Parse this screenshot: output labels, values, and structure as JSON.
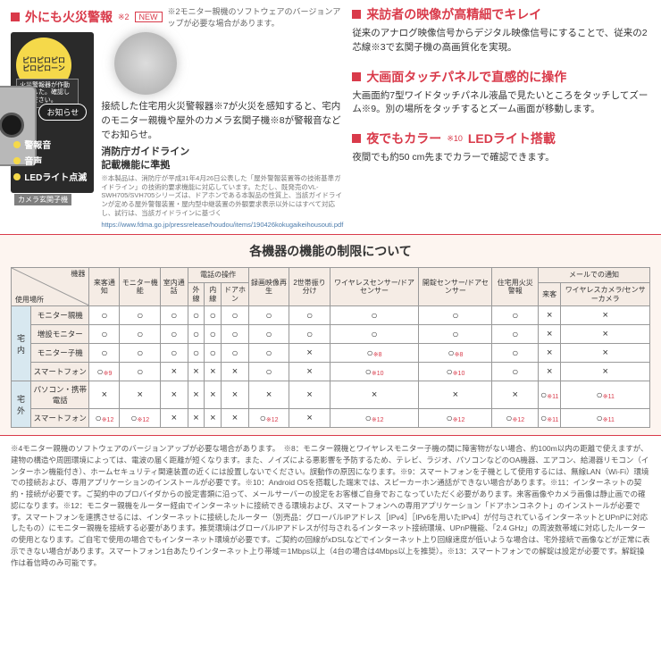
{
  "top_left": {
    "title": "外にも火災警報",
    "sup": "※2",
    "new": "NEW",
    "note": "※2モニター親機のソフトウェアのバージョンアップが必要な場合があります。",
    "balloon": "ピロピロピロ\nピロピローン",
    "alert_box": "火災警報器が作動しました。確認してください。",
    "notice": "お知らせ",
    "bullets": [
      "警報音",
      "音声",
      "LEDライト点滅"
    ],
    "caption": "カメラ玄関子機",
    "desc": "接続した住宅用火災警報器※7が火災を感知すると、宅内のモニター親機や屋外のカメラ玄関子機※8が警報音などでお知らせ。",
    "guideline_title": "消防庁ガイドライン\n記載機能に準拠",
    "fine": "※本製品は、消防庁が平成31年4月26日公表した「屋外警報装置等の技術基準ガイドライン」の技術的要求機能に対応しています。ただし、既発売のVL-SWH705/SVH705シリーズは、ドアホンである本製品の性質上、当該ガイドラインが定める屋外警報装置・屋内型中継装置の外観要求表示以外にはすべて対応し、試行は、当該ガイドラインに基づく",
    "url": "https://www.fdma.go.jp/pressrelease/houdou/items/190426kokugaikeihousouti.pdf"
  },
  "top_right": {
    "f1_title": "来訪者の映像が高精細でキレイ",
    "f1_body": "従来のアナログ映像信号からデジタル映像信号にすることで、従来の2芯線※3で玄関子機の高画質化を実現。",
    "f2_title": "大画面タッチパネルで直感的に操作",
    "f2_body": "大画面約7型ワイドタッチパネル液晶で見たいところをタッチしてズーム※9。別の場所をタッチするとズーム画面が移動します。",
    "f3_title": "夜でもカラー",
    "f3_sup": "※10",
    "f3_title2": "LEDライト搭載",
    "f3_body": "夜間でも約50 cm先までカラーで確認できます。"
  },
  "table": {
    "title": "各機器の機能の制限について",
    "corner1": "使用場所",
    "corner2": "機器",
    "colgroup_call": "電話の操作",
    "colgroup_mail": "メールでの通知",
    "cols": [
      "来客通知",
      "モニター機能",
      "室内通話",
      "外線",
      "内線",
      "ドアホン",
      "録画映像再生",
      "2世帯振り分け",
      "ワイヤレスセンサー/ドアセンサー",
      "開錠センサー/ドアセンサー",
      "住宅用火災警報",
      "来客",
      "ワイヤレスカメラ/センサーカメラ"
    ],
    "side1": "宅内",
    "side2": "宅外",
    "rows": [
      {
        "label": "モニター親機",
        "cells": [
          "○",
          "○",
          "○",
          "○",
          "○",
          "○",
          "○",
          "○",
          "○",
          "○",
          "○",
          "×",
          "×"
        ]
      },
      {
        "label": "増設モニター",
        "cells": [
          "○",
          "○",
          "○",
          "○",
          "○",
          "○",
          "○",
          "○",
          "○",
          "○",
          "○",
          "×",
          "×"
        ]
      },
      {
        "label": "モニター子機",
        "cells": [
          "○",
          "○",
          "○",
          "○",
          "○",
          "○",
          "○",
          "×",
          "○※8",
          "○※8",
          "○",
          "×",
          "×"
        ]
      },
      {
        "label": "スマートフォン",
        "cells": [
          "○※9",
          "○",
          "×",
          "×",
          "×",
          "×",
          "○",
          "×",
          "○※10",
          "○※10",
          "○",
          "×",
          "×"
        ]
      },
      {
        "label": "パソコン・携帯電話",
        "cells": [
          "×",
          "×",
          "×",
          "×",
          "×",
          "×",
          "×",
          "×",
          "×",
          "×",
          "×",
          "○※11",
          "○※11"
        ]
      },
      {
        "label": "スマートフォン",
        "cells": [
          "○※12",
          "○※12",
          "×",
          "×",
          "×",
          "×",
          "○※12",
          "×",
          "○※12",
          "○※12",
          "○※12",
          "○※11",
          "○※11"
        ]
      }
    ]
  },
  "footnotes": "※4モニター親機のソフトウェアのバージョンアップが必要な場合があります。　※8：モニター親機とワイヤレスモニター子機の間に障害物がない場合、約100m以内の距離で使えますが、建物の構造や周囲環境によっては、電波の届く距離が短くなります。また、ノイズによる悪影響を予防するため、テレビ、ラジオ、パソコンなどのOA機器、エアコン、給湯器リモコン（インターホン機能付き）、ホームセキュリティ関連装置の近くには設置しないでください。誤動作の原因になります。※9：スマートフォンを子機として使用するには、無線LAN（Wi-Fi）環境での接続および、専用アプリケーションのインストールが必要です。※10：Android OSを搭載した端末では、スピーカーホン通話ができない場合があります。※11：インターネットの契約・接続が必要です。ご契約中のプロバイダからの設定書類に沿って、メールサーバーの設定をお客様ご自身でおこなっていただく必要があります。来客画像やカメラ画像は静止画での確認になります。※12：モニター親機をルーター経由でインターネットに接続できる環境および、スマートフォンへの専用アプリケーション「ドアホンコネクト」のインストールが必要です。スマートフォンを連携させるには、インターネットに接続したルーター（別売品：グローバルIPアドレス［IPv4］［IPv6を用いたIPv4］が付与されているインターネットとUPnPに対応したもの）にモニター親機を接続する必要があります。推奨環境はグローバルIPアドレスが付与されるインターネット接続環境、UPnP機能、「2.4 GHz」の周波数帯域に対応したルーターの使用となります。ご自宅で使用の場合でもインターネット環境が必要です。ご契約の回線がxDSLなどでインターネット上り回線速度が低いような場合は、宅外接続で画像などが正常に表示できない場合があります。スマートフォン1台あたりインターネット上り帯域＝1Mbps以上（4台の場合は4Mbps以上を推奨）。※13：スマートフォンでの解錠は設定が必要です。解錠操作は着信時のみ可能です。"
}
